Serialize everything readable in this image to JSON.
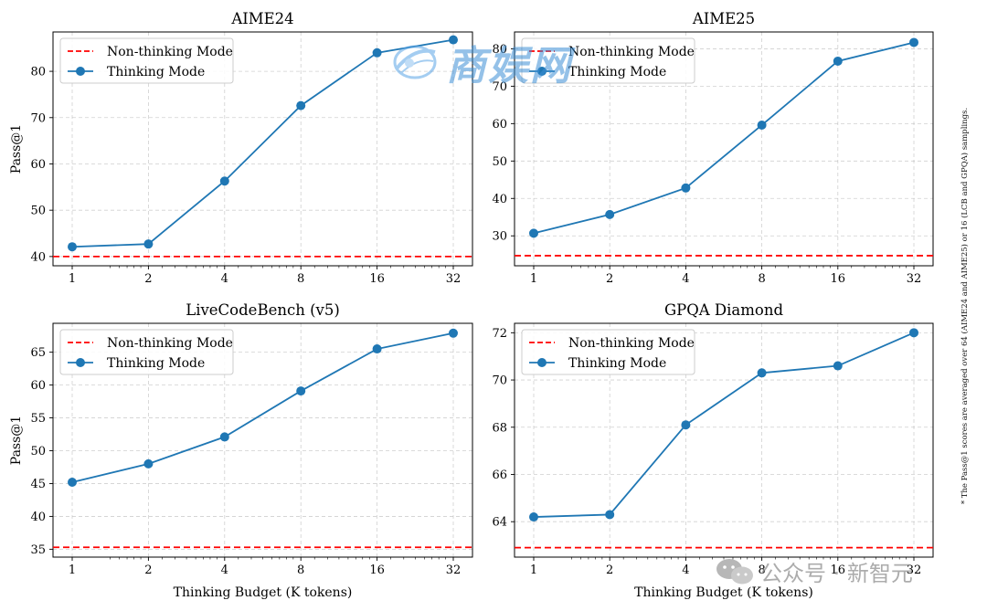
{
  "figure_note": "* The Pass@1 scores are averaged over 64 (AIME24 and AIME25) or 16 (LCB and GPQA) samplings.",
  "watermarks": {
    "top": "商娱网",
    "bottom": "公众号 · 新智元"
  },
  "colors": {
    "thinking": "#1f77b4",
    "nonthinking": "#ff0000",
    "grid": "#b0b0b0",
    "axis": "#000000"
  },
  "chart_data": [
    {
      "type": "line",
      "title": "AIME24",
      "xlabel": "",
      "ylabel": "Pass@1",
      "x": [
        1,
        2,
        4,
        8,
        16,
        32
      ],
      "x_tick_labels": [
        "1",
        "2",
        "4",
        "8",
        "16",
        "32"
      ],
      "ylim": [
        38.0,
        88.5
      ],
      "y_ticks": [
        40,
        50,
        60,
        70,
        80
      ],
      "grid": true,
      "legend": "top-left",
      "series": [
        {
          "name": "Non-thinking Mode",
          "style": "dashed",
          "constant": 40.0
        },
        {
          "name": "Thinking Mode",
          "style": "line-marker",
          "values": [
            42.1,
            42.7,
            56.3,
            72.6,
            84.0,
            86.8
          ]
        }
      ]
    },
    {
      "type": "line",
      "title": "AIME25",
      "xlabel": "",
      "ylabel": "",
      "x": [
        1,
        2,
        4,
        8,
        16,
        32
      ],
      "x_tick_labels": [
        "1",
        "2",
        "4",
        "8",
        "16",
        "32"
      ],
      "ylim": [
        22.0,
        84.5
      ],
      "y_ticks": [
        30,
        40,
        50,
        60,
        70,
        80
      ],
      "grid": true,
      "legend": "top-left",
      "series": [
        {
          "name": "Non-thinking Mode",
          "style": "dashed",
          "constant": 24.7
        },
        {
          "name": "Thinking Mode",
          "style": "line-marker",
          "values": [
            30.7,
            35.7,
            42.8,
            59.6,
            76.7,
            81.7
          ]
        }
      ]
    },
    {
      "type": "line",
      "title": "LiveCodeBench (v5)",
      "xlabel": "Thinking Budget (K tokens)",
      "ylabel": "Pass@1",
      "x": [
        1,
        2,
        4,
        8,
        16,
        32
      ],
      "x_tick_labels": [
        "1",
        "2",
        "4",
        "8",
        "16",
        "32"
      ],
      "ylim": [
        33.8,
        69.4
      ],
      "y_ticks": [
        35,
        40,
        45,
        50,
        55,
        60,
        65
      ],
      "grid": true,
      "legend": "top-left",
      "series": [
        {
          "name": "Non-thinking Mode",
          "style": "dashed",
          "constant": 35.3
        },
        {
          "name": "Thinking Mode",
          "style": "line-marker",
          "values": [
            45.2,
            48.0,
            52.1,
            59.1,
            65.5,
            67.9
          ]
        }
      ]
    },
    {
      "type": "line",
      "title": "GPQA Diamond",
      "xlabel": "Thinking Budget (K tokens)",
      "ylabel": "",
      "x": [
        1,
        2,
        4,
        8,
        16,
        32
      ],
      "x_tick_labels": [
        "1",
        "2",
        "4",
        "8",
        "16",
        "32"
      ],
      "ylim": [
        62.5,
        72.4
      ],
      "y_ticks": [
        64,
        66,
        68,
        70,
        72
      ],
      "grid": true,
      "legend": "top-left",
      "series": [
        {
          "name": "Non-thinking Mode",
          "style": "dashed",
          "constant": 62.9
        },
        {
          "name": "Thinking Mode",
          "style": "line-marker",
          "values": [
            64.2,
            64.3,
            68.1,
            70.3,
            70.6,
            72.0
          ]
        }
      ]
    }
  ]
}
